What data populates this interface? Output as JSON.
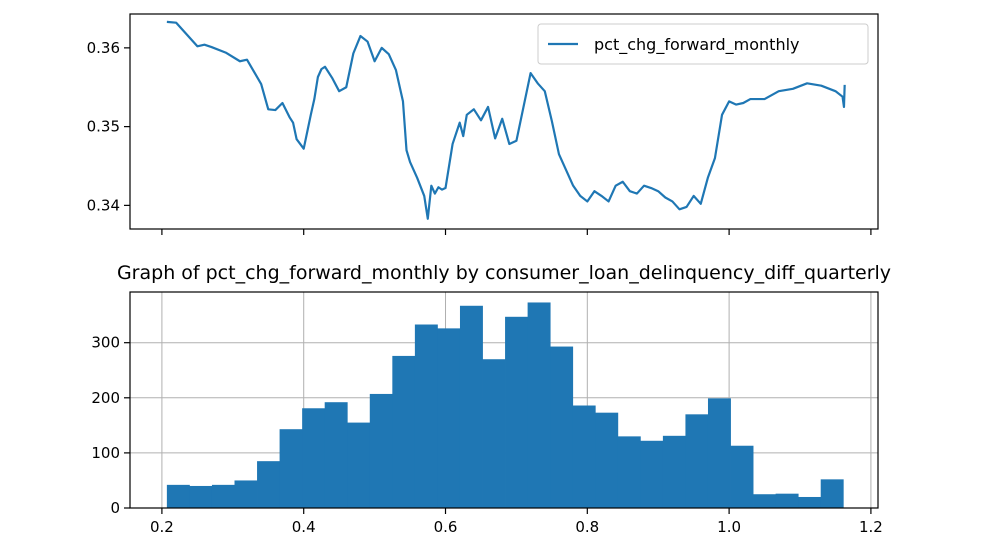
{
  "chart_data": [
    {
      "type": "line",
      "title": "",
      "xlabel": "",
      "ylabel": "",
      "xlim": [
        0.155,
        1.21
      ],
      "ylim": [
        0.337,
        0.3643
      ],
      "yticks": [
        "0.34",
        "0.35",
        "0.36"
      ],
      "ytick_values": [
        0.34,
        0.35,
        0.36
      ],
      "xticks_values": [
        0.2,
        0.4,
        0.6,
        0.8,
        1.0,
        1.2
      ],
      "xtick_labels_shown": false,
      "grid": false,
      "legend_position": "top-right",
      "series": [
        {
          "name": "pct_chg_forward_monthly",
          "color": "#1f77b4",
          "x": [
            0.207,
            0.22,
            0.23,
            0.25,
            0.26,
            0.27,
            0.29,
            0.31,
            0.32,
            0.34,
            0.35,
            0.36,
            0.37,
            0.38,
            0.385,
            0.39,
            0.4,
            0.41,
            0.415,
            0.42,
            0.425,
            0.43,
            0.44,
            0.45,
            0.46,
            0.47,
            0.48,
            0.49,
            0.5,
            0.51,
            0.52,
            0.53,
            0.54,
            0.545,
            0.55,
            0.56,
            0.57,
            0.575,
            0.58,
            0.585,
            0.59,
            0.595,
            0.6,
            0.61,
            0.62,
            0.625,
            0.63,
            0.64,
            0.65,
            0.66,
            0.67,
            0.68,
            0.69,
            0.7,
            0.71,
            0.72,
            0.73,
            0.74,
            0.75,
            0.76,
            0.77,
            0.78,
            0.79,
            0.8,
            0.81,
            0.82,
            0.83,
            0.84,
            0.85,
            0.86,
            0.87,
            0.88,
            0.89,
            0.9,
            0.91,
            0.92,
            0.93,
            0.94,
            0.95,
            0.96,
            0.97,
            0.98,
            0.99,
            1.0,
            1.01,
            1.02,
            1.03,
            1.05,
            1.07,
            1.09,
            1.11,
            1.13,
            1.15,
            1.16,
            1.162,
            1.163
          ],
          "y": [
            0.3633,
            0.3632,
            0.3622,
            0.3602,
            0.3604,
            0.3601,
            0.3594,
            0.3583,
            0.3585,
            0.3554,
            0.3522,
            0.3521,
            0.353,
            0.3512,
            0.3505,
            0.3484,
            0.3472,
            0.3515,
            0.3535,
            0.3563,
            0.3573,
            0.3576,
            0.3562,
            0.3545,
            0.355,
            0.3593,
            0.3615,
            0.3608,
            0.3583,
            0.36,
            0.3592,
            0.3572,
            0.3532,
            0.347,
            0.3455,
            0.3435,
            0.3412,
            0.3383,
            0.3425,
            0.3415,
            0.3423,
            0.342,
            0.3422,
            0.3478,
            0.3505,
            0.3488,
            0.3515,
            0.3522,
            0.3508,
            0.3525,
            0.3485,
            0.351,
            0.3478,
            0.3482,
            0.3525,
            0.3568,
            0.3555,
            0.3545,
            0.3507,
            0.3465,
            0.3445,
            0.3425,
            0.3412,
            0.3405,
            0.3418,
            0.3412,
            0.3405,
            0.3425,
            0.343,
            0.3418,
            0.3415,
            0.3425,
            0.3422,
            0.3418,
            0.341,
            0.3405,
            0.3395,
            0.3398,
            0.3412,
            0.3402,
            0.3435,
            0.346,
            0.3515,
            0.3532,
            0.3528,
            0.353,
            0.3535,
            0.3535,
            0.3545,
            0.3548,
            0.3555,
            0.3552,
            0.3545,
            0.3538,
            0.3525,
            0.3553
          ]
        }
      ]
    },
    {
      "type": "bar",
      "title": "Graph of pct_chg_forward_monthly by consumer_loan_delinquency_diff_quarterly",
      "xlabel": "",
      "ylabel": "",
      "xlim": [
        0.155,
        1.21
      ],
      "ylim": [
        0,
        392
      ],
      "xticks": [
        "0.2",
        "0.4",
        "0.6",
        "0.8",
        "1.0",
        "1.2"
      ],
      "xtick_values": [
        0.2,
        0.4,
        0.6,
        0.8,
        1.0,
        1.2
      ],
      "yticks": [
        "0",
        "100",
        "200",
        "300"
      ],
      "ytick_values": [
        0,
        100,
        200,
        300
      ],
      "grid": true,
      "color": "#1f77b4",
      "bin_edges": [
        0.207,
        0.2388,
        0.2706,
        0.3024,
        0.3342,
        0.366,
        0.3978,
        0.4296,
        0.4614,
        0.4932,
        0.525,
        0.5568,
        0.5886,
        0.6204,
        0.6522,
        0.684,
        0.7158,
        0.7476,
        0.7794,
        0.8112,
        0.843,
        0.8748,
        0.9066,
        0.9384,
        0.9702,
        1.002,
        1.0338,
        1.0656,
        1.0974,
        1.1292,
        1.161
      ],
      "values": [
        42,
        40,
        42,
        50,
        85,
        143,
        181,
        192,
        155,
        207,
        276,
        333,
        326,
        367,
        270,
        347,
        373,
        293,
        186,
        173,
        130,
        122,
        131,
        170,
        199,
        113,
        25,
        26,
        20,
        52
      ]
    }
  ]
}
